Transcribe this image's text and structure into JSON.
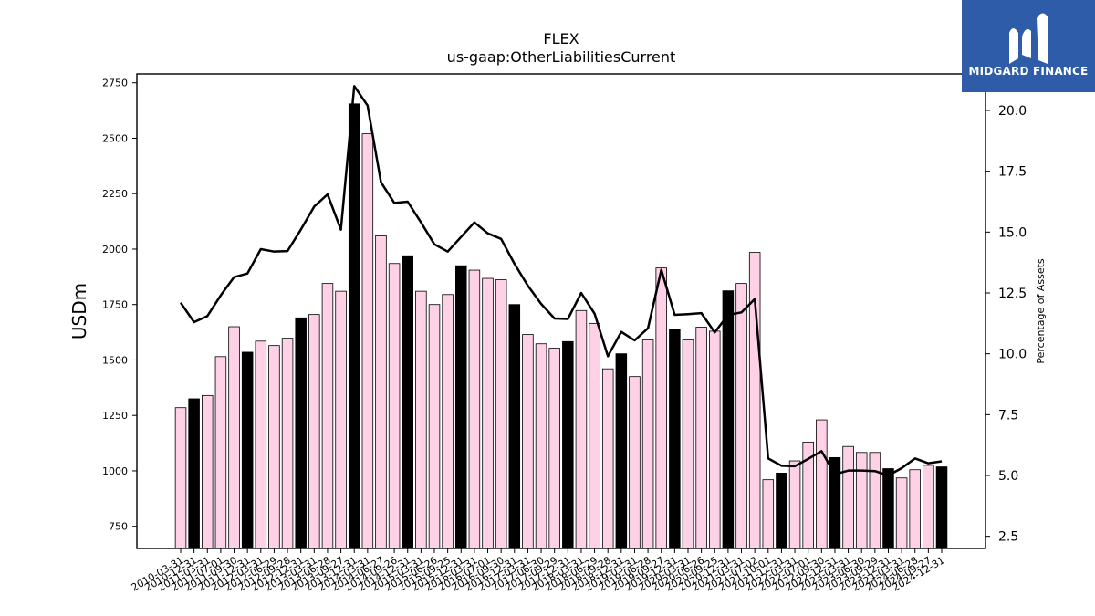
{
  "chart_data": {
    "type": "bar",
    "title": "FLEX",
    "subtitle": "us-gaap:OtherLiabilitiesCurrent",
    "ylabel": "USDm",
    "y2label": "Percentage of Assets",
    "ylim": [
      650,
      2790
    ],
    "y2lim": [
      2.0,
      21.5
    ],
    "yticks": [
      750,
      1000,
      1250,
      1500,
      1750,
      2000,
      2250,
      2500,
      2750
    ],
    "y2ticks": [
      2.5,
      5.0,
      7.5,
      10.0,
      12.5,
      15.0,
      17.5,
      20.0
    ],
    "categories": [
      "2010-03-31",
      "2010-12-31",
      "2011-03-31",
      "2011-07-01",
      "2011-09-30",
      "2011-12-31",
      "2012-03-31",
      "2012-06-29",
      "2012-09-28",
      "2012-12-31",
      "2013-03-31",
      "2013-06-28",
      "2013-09-27",
      "2013-12-31",
      "2014-03-31",
      "2014-06-27",
      "2014-09-26",
      "2014-12-31",
      "2015-03-31",
      "2015-06-26",
      "2015-09-25",
      "2015-12-31",
      "2016-03-31",
      "2016-07-01",
      "2016-09-30",
      "2016-12-31",
      "2017-03-31",
      "2017-06-30",
      "2017-09-29",
      "2017-12-31",
      "2018-03-31",
      "2018-06-29",
      "2018-09-28",
      "2018-12-31",
      "2019-03-31",
      "2019-06-28",
      "2019-09-27",
      "2019-12-31",
      "2020-03-31",
      "2020-06-26",
      "2020-09-25",
      "2020-12-31",
      "2021-03-31",
      "2021-07-02",
      "2021-10-01",
      "2021-12-31",
      "2022-03-31",
      "2022-07-01",
      "2022-09-30",
      "2022-12-31",
      "2023-03-31",
      "2023-06-30",
      "2023-09-29",
      "2023-12-31",
      "2024-03-31",
      "2024-06-28",
      "2024-09-27",
      "2024-12-31"
    ],
    "values": [
      1285,
      1325,
      1340,
      1515,
      1650,
      1535,
      1585,
      1565,
      1598,
      1690,
      1705,
      1845,
      1810,
      2655,
      2520,
      2060,
      1935,
      1970,
      1810,
      1750,
      1795,
      1925,
      1905,
      1868,
      1862,
      1750,
      1615,
      1573,
      1553,
      1583,
      1723,
      1665,
      1460,
      1528,
      1425,
      1590,
      1915,
      1638,
      1590,
      1648,
      1630,
      1812,
      1845,
      1985,
      960,
      990,
      1045,
      1130,
      1230,
      1060,
      1110,
      1083,
      1083,
      1010,
      968,
      1005,
      1025,
      1018
    ],
    "bar_colors": [
      "pink",
      "black",
      "pink",
      "pink",
      "pink",
      "black",
      "pink",
      "pink",
      "pink",
      "black",
      "pink",
      "pink",
      "pink",
      "black",
      "pink",
      "pink",
      "pink",
      "black",
      "pink",
      "pink",
      "pink",
      "black",
      "pink",
      "pink",
      "pink",
      "black",
      "pink",
      "pink",
      "pink",
      "black",
      "pink",
      "pink",
      "pink",
      "black",
      "pink",
      "pink",
      "pink",
      "black",
      "pink",
      "pink",
      "pink",
      "black",
      "pink",
      "pink",
      "pink",
      "black",
      "pink",
      "pink",
      "pink",
      "black",
      "pink",
      "pink",
      "pink",
      "black",
      "pink",
      "pink",
      "pink",
      "black"
    ],
    "series": [
      {
        "name": "",
        "axis": "left",
        "kind": "bar",
        "values_ref": "values"
      },
      {
        "name": "",
        "axis": "right",
        "kind": "line",
        "values": [
          12.1,
          11.3,
          11.55,
          12.4,
          13.15,
          13.3,
          14.3,
          14.2,
          14.22,
          15.1,
          16.05,
          16.55,
          15.1,
          21.0,
          20.2,
          17.05,
          16.2,
          16.25,
          15.4,
          14.5,
          14.2,
          14.8,
          15.4,
          14.95,
          14.72,
          13.7,
          12.8,
          12.05,
          11.45,
          11.43,
          12.5,
          11.65,
          9.9,
          10.9,
          10.55,
          11.05,
          13.45,
          11.6,
          11.63,
          11.67,
          10.88,
          11.6,
          11.7,
          12.25,
          5.7,
          5.4,
          5.38,
          5.68,
          6.0,
          5.05,
          5.2,
          5.2,
          5.18,
          5.0,
          5.3,
          5.7,
          5.5,
          5.58
        ]
      }
    ],
    "grid": false,
    "colors": {
      "pink_bar": "#ffd1e6",
      "black_bar": "#000000",
      "line": "#000000"
    }
  },
  "logo": {
    "brand": "MIDGARD FINANCE",
    "bg": "#2f5ca8"
  }
}
